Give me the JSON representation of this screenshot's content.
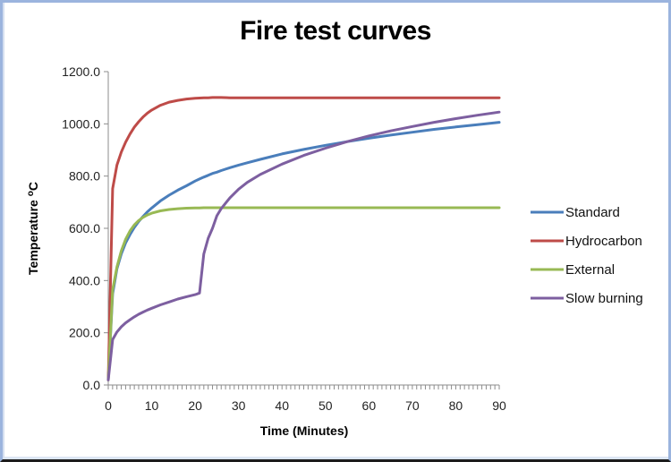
{
  "chart_data": {
    "type": "line",
    "title": "Fire test curves",
    "xlabel": "Time (Minutes)",
    "ylabel": "Temperature °C",
    "ylabel_main": "Temperature ",
    "ylabel_sup": "o",
    "ylabel_unit": "C",
    "xlim": [
      0,
      90
    ],
    "ylim": [
      0,
      1200
    ],
    "x_ticks": [
      0,
      10,
      20,
      30,
      40,
      50,
      60,
      70,
      80,
      90
    ],
    "x_tick_labels": [
      "0",
      "10",
      "20",
      "30",
      "40",
      "50",
      "60",
      "70",
      "80",
      "90"
    ],
    "y_ticks": [
      0,
      200,
      400,
      600,
      800,
      1000,
      1200
    ],
    "y_tick_labels": [
      "0.0",
      "200.0",
      "400.0",
      "600.0",
      "800.0",
      "1000.0",
      "1200.0"
    ],
    "grid": false,
    "legend_position": "right",
    "x": [
      0,
      1,
      2,
      3,
      4,
      5,
      6,
      7,
      8,
      9,
      10,
      12,
      14,
      16,
      18,
      20,
      21,
      22,
      23,
      24,
      25,
      26,
      28,
      30,
      32,
      35,
      40,
      45,
      50,
      55,
      60,
      65,
      70,
      75,
      80,
      85,
      90
    ],
    "series": [
      {
        "name": "Standard",
        "color": "#4a7ebb",
        "values": [
          20,
          349,
          445,
          502,
          544,
          576,
          603,
          626,
          645,
          663,
          678,
          705,
          727,
          746,
          763,
          781,
          789,
          796,
          803,
          810,
          815,
          821,
          832,
          842,
          851,
          864,
          885,
          902,
          918,
          932,
          945,
          957,
          968,
          979,
          988,
          997,
          1006
        ]
      },
      {
        "name": "Hydrocarbon",
        "color": "#be4b48",
        "values": [
          20,
          752,
          842,
          892,
          930,
          961,
          987,
          1008,
          1026,
          1041,
          1053,
          1071,
          1083,
          1090,
          1095,
          1098,
          1099,
          1100,
          1100,
          1101,
          1101,
          1101,
          1100,
          1100,
          1100,
          1100,
          1100,
          1100,
          1100,
          1100,
          1100,
          1100,
          1100,
          1100,
          1100,
          1100,
          1100
        ]
      },
      {
        "name": "External",
        "color": "#98b954",
        "values": [
          20,
          365,
          452,
          514,
          558,
          590,
          613,
          630,
          642,
          651,
          658,
          667,
          672,
          675,
          677,
          678,
          678,
          679,
          679,
          679,
          679,
          679,
          679,
          679,
          679,
          679,
          679,
          679,
          679,
          679,
          679,
          679,
          679,
          679,
          679,
          679,
          679
        ]
      },
      {
        "name": "Slow burning",
        "color": "#7d5fa0",
        "values": [
          20,
          174,
          203,
          223,
          238,
          250,
          261,
          271,
          279,
          287,
          294,
          307,
          318,
          329,
          338,
          346,
          352,
          502,
          562,
          600,
          648,
          675,
          717,
          750,
          776,
          806,
          846,
          879,
          907,
          932,
          954,
          973,
          990,
          1006,
          1020,
          1033,
          1045
        ]
      }
    ]
  }
}
